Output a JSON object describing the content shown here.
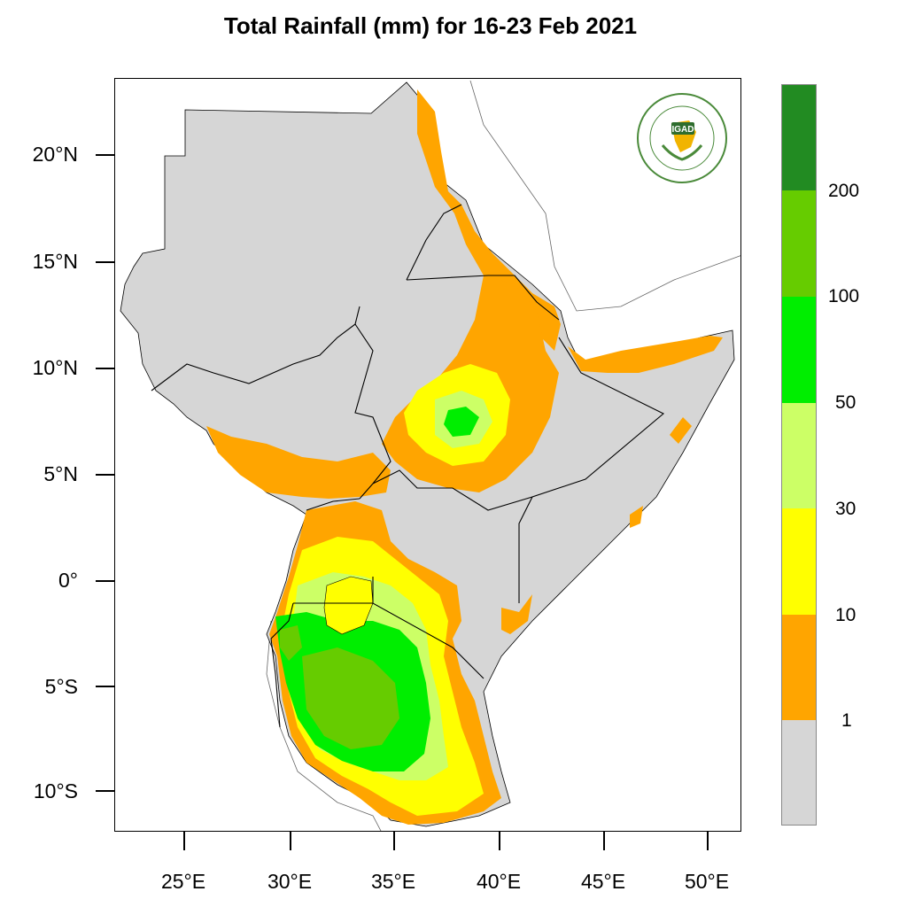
{
  "title": "Total Rainfall (mm) for 16-23 Feb 2021",
  "logo": {
    "text": "IGAD",
    "ring_text": "INTERGOVERNMENTAL AUTHORITY ON DEVELOPMENT"
  },
  "axes": {
    "lat_labels": [
      "20°N",
      "15°N",
      "10°N",
      "5°N",
      "0°",
      "5°S",
      "10°S"
    ],
    "lon_labels": [
      "25°E",
      "30°E",
      "35°E",
      "40°E",
      "45°E",
      "50°E"
    ]
  },
  "legend": {
    "labels": [
      "200",
      "100",
      "50",
      "30",
      "10",
      "1"
    ],
    "colors": [
      "#228b22",
      "#66cc00",
      "#00ee00",
      "#ccff66",
      "#ffff00",
      "#ffa500",
      "#d6d6d6"
    ]
  },
  "colors": {
    "land": "#d6d6d6",
    "c1": "#ffa500",
    "c10": "#ffff00",
    "c30": "#ccff66",
    "c50": "#00ee00",
    "c100": "#66cc00",
    "c200": "#228b22",
    "border": "#000000"
  }
}
